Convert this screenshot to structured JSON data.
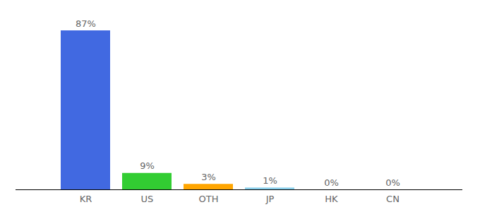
{
  "chart_data": {
    "type": "bar",
    "categories": [
      "KR",
      "US",
      "OTH",
      "JP",
      "HK",
      "CN"
    ],
    "values": [
      87,
      9,
      3,
      1,
      0,
      0
    ],
    "value_labels": [
      "87%",
      "9%",
      "3%",
      "1%",
      "0%",
      "0%"
    ],
    "colors": [
      "#4169e1",
      "#32cd32",
      "#ffa500",
      "#87ceeb",
      "#9370db",
      "#ff69b4"
    ],
    "ylim": [
      0,
      87
    ],
    "data_labels": true,
    "tick_labels": "x",
    "grid": false
  }
}
